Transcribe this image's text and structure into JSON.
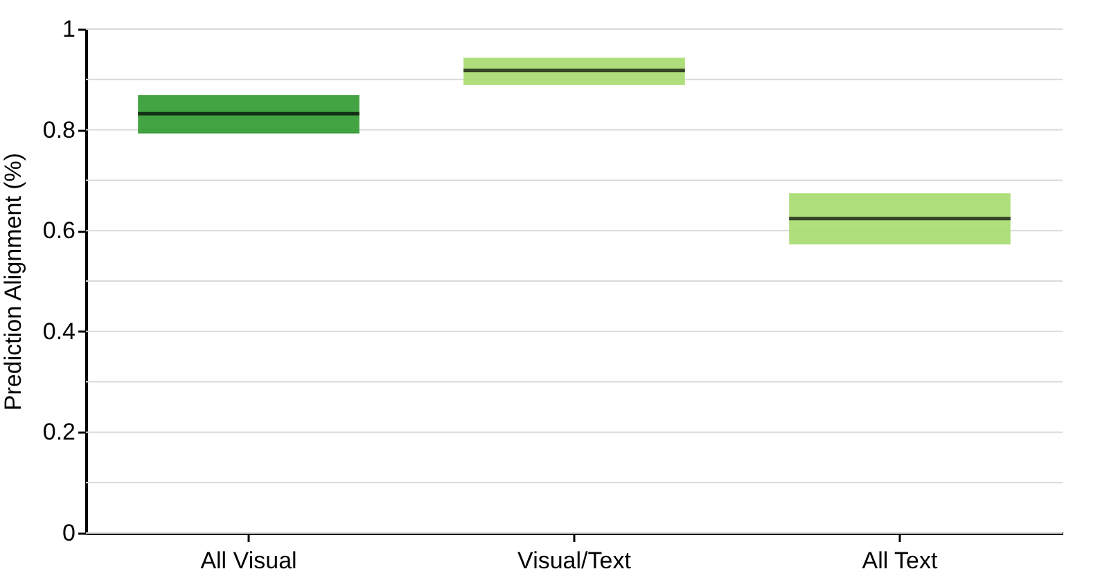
{
  "chart_data": {
    "type": "box",
    "ylabel": "Prediction Alignment (%)",
    "categories": [
      "All Visual",
      "Visual/Text",
      "All Text"
    ],
    "boxes": [
      {
        "low": 0.794,
        "q1": 0.794,
        "median": 0.832,
        "q3": 0.868,
        "high": 0.868
      },
      {
        "low": 0.89,
        "q1": 0.89,
        "median": 0.918,
        "q3": 0.942,
        "high": 0.942
      },
      {
        "low": 0.574,
        "q1": 0.574,
        "median": 0.624,
        "q3": 0.673,
        "high": 0.673
      }
    ],
    "colors": [
      "#2f9a2f",
      "#a6dc6e",
      "#a6dc6e"
    ],
    "ylim": [
      0,
      1
    ],
    "yticks": [
      0,
      {
        "value": 0.1,
        "label": null
      },
      0.2,
      {
        "value": 0.3,
        "label": null
      },
      0.4,
      {
        "value": 0.5,
        "label": null
      },
      0.6,
      {
        "value": 0.7,
        "label": null
      },
      0.8,
      {
        "value": 0.9,
        "label": null
      },
      1
    ],
    "grid": "y"
  }
}
